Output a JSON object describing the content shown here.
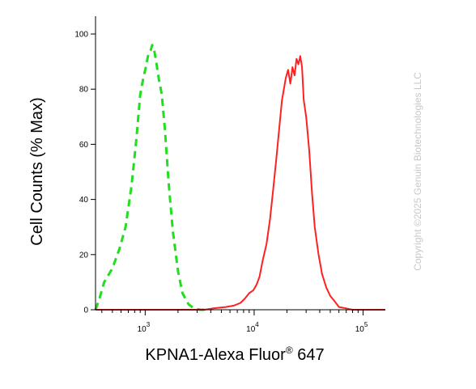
{
  "chart_data": {
    "type": "line",
    "title": "",
    "xlabel_main": "KPNA1-Alexa Fluor",
    "xlabel_sup": "®",
    "xlabel_tail": " 647",
    "ylabel": "Cell Counts (% Max)",
    "x_scale": "log",
    "xlim": [
      350,
      160000
    ],
    "ylim": [
      0,
      105
    ],
    "x_ticks": [
      {
        "value": 1000,
        "base": "10",
        "exp": "3"
      },
      {
        "value": 10000,
        "base": "10",
        "exp": "4"
      },
      {
        "value": 100000,
        "base": "10",
        "exp": "5"
      }
    ],
    "y_ticks": [
      {
        "value": 0,
        "label": "0"
      },
      {
        "value": 20,
        "label": "20"
      },
      {
        "value": 40,
        "label": "40"
      },
      {
        "value": 60,
        "label": "60"
      },
      {
        "value": 80,
        "label": "80"
      },
      {
        "value": 100,
        "label": "100"
      }
    ],
    "grid": false,
    "series": [
      {
        "color": "#22dd22",
        "dash": true,
        "x": [
          350,
          380,
          420,
          500,
          580,
          660,
          750,
          830,
          900,
          960,
          1000,
          1060,
          1120,
          1160,
          1200,
          1260,
          1330,
          1420,
          1520,
          1650,
          1800,
          2000,
          2200,
          2500,
          2800,
          3200,
          3600
        ],
        "y": [
          0,
          4,
          10,
          15,
          22,
          30,
          45,
          62,
          78,
          84,
          87,
          92,
          94,
          96,
          95,
          90,
          84,
          78,
          65,
          45,
          28,
          14,
          6,
          2,
          0.5,
          0,
          0
        ]
      },
      {
        "color": "#ff2020",
        "dash": false,
        "x": [
          350,
          2000,
          3500,
          4200,
          5500,
          6500,
          7500,
          8200,
          9000,
          9800,
          10500,
          11200,
          12000,
          13000,
          14000,
          15000,
          16000,
          17000,
          18000,
          19500,
          20500,
          21500,
          22500,
          23500,
          24500,
          25500,
          26500,
          27500,
          28500,
          30000,
          32000,
          34000,
          36000,
          39000,
          42000,
          46000,
          50000,
          55000,
          60000,
          70000,
          80000,
          160000
        ],
        "y": [
          0,
          0,
          0,
          0.5,
          1,
          1.5,
          2.5,
          4,
          6,
          7,
          9,
          12,
          18,
          24,
          33,
          44,
          55,
          66,
          76,
          84,
          87,
          82,
          88,
          85,
          91,
          89,
          92,
          88,
          76,
          70,
          58,
          42,
          30,
          20,
          13,
          8,
          5,
          3,
          1,
          0.5,
          0,
          0
        ]
      }
    ]
  },
  "watermark": "Copyright ©2025 Genuin Biotechnologies LLC"
}
